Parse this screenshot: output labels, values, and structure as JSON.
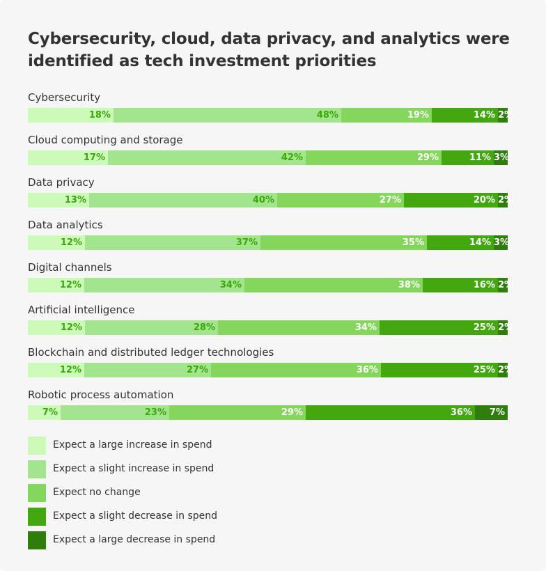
{
  "title": "Cybersecurity, cloud, data privacy, and analytics were identified as tech investment priorities",
  "chart_data": {
    "type": "bar",
    "orientation": "horizontal-stacked-100",
    "title": "Cybersecurity, cloud, data privacy, and analytics were identified as tech investment priorities",
    "categories": [
      "Cybersecurity",
      "Cloud computing and storage",
      "Data privacy",
      "Data analytics",
      "Digital channels",
      "Artificial intelligence",
      "Blockchain and distributed ledger technologies",
      "Robotic process automation"
    ],
    "series": [
      {
        "name": "Expect a large increase in spend",
        "color": "#ccfab8",
        "label_color": "#3aa70a",
        "values": [
          18,
          17,
          13,
          12,
          12,
          12,
          12,
          7
        ]
      },
      {
        "name": "Expect a slight increase in spend",
        "color": "#a3e58c",
        "label_color": "#3aa70a",
        "values": [
          48,
          42,
          40,
          37,
          34,
          28,
          27,
          23
        ]
      },
      {
        "name": "Expect no change",
        "color": "#84d65c",
        "label_color": "#ffffff",
        "values": [
          19,
          29,
          27,
          35,
          38,
          34,
          36,
          29
        ]
      },
      {
        "name": "Expect a slight decrease in spend",
        "color": "#43a810",
        "label_color": "#ffffff",
        "values": [
          14,
          11,
          20,
          14,
          16,
          25,
          25,
          36
        ]
      },
      {
        "name": "Expect a large decrease in spend",
        "color": "#2f7d0b",
        "label_color": "#ffffff",
        "values": [
          2,
          3,
          2,
          3,
          2,
          2,
          2,
          7
        ]
      }
    ],
    "value_suffix": "%",
    "legend_position": "bottom-left"
  }
}
